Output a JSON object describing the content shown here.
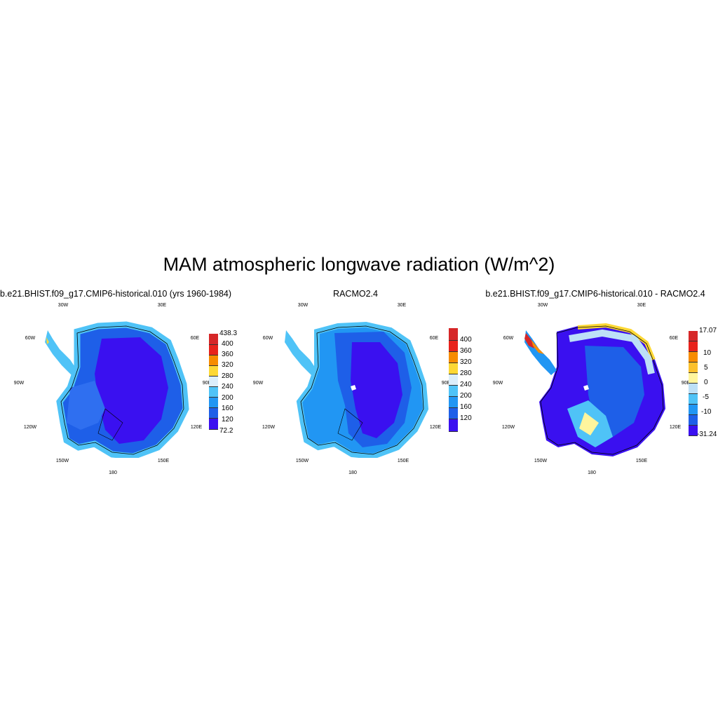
{
  "figure": {
    "title": "MAM atmospheric longwave radiation (W/m^2)"
  },
  "map_labels": {
    "lon_30w": "30W",
    "lon_30e": "30E",
    "lon_60w": "60W",
    "lon_60e": "60E",
    "lon_90w": "90W",
    "lon_90e": "90E",
    "lon_120w": "120W",
    "lon_120e": "120E",
    "lon_150w": "150W",
    "lon_150e": "150E",
    "lon_180": "180"
  },
  "panels": [
    {
      "title": "b.e21.BHIST.f09_g17.CMIP6-historical.010 (yrs 1960-1984)",
      "colorbar": {
        "labels": [
          "438.3",
          "400",
          "360",
          "320",
          "280",
          "240",
          "200",
          "160",
          "120",
          "72.2"
        ],
        "colors": [
          "#d62728",
          "#e8231c",
          "#f78c00",
          "#fdd835",
          "#dbeefb",
          "#4fc3f7",
          "#2196f3",
          "#1e5fe8",
          "#3a10f0"
        ]
      }
    },
    {
      "title": "RACMO2.4",
      "colorbar": {
        "labels": [
          "400",
          "360",
          "320",
          "280",
          "240",
          "200",
          "160",
          "120"
        ],
        "colors": [
          "#d62728",
          "#e8231c",
          "#f78c00",
          "#fdd835",
          "#dbeefb",
          "#4fc3f7",
          "#2196f3",
          "#1e5fe8",
          "#3a10f0"
        ]
      }
    },
    {
      "title": "b.e21.BHIST.f09_g17.CMIP6-historical.010 - RACMO2.4",
      "colorbar": {
        "labels": [
          "17.07",
          "10",
          "5",
          "0",
          "-5",
          "-10",
          "-31.24"
        ],
        "colors": [
          "#d62728",
          "#e8231c",
          "#f78c00",
          "#fbc02d",
          "#fff59d",
          "#bde0f7",
          "#4fc3f7",
          "#2196f3",
          "#1e5fe8",
          "#3a10f0"
        ]
      }
    }
  ]
}
